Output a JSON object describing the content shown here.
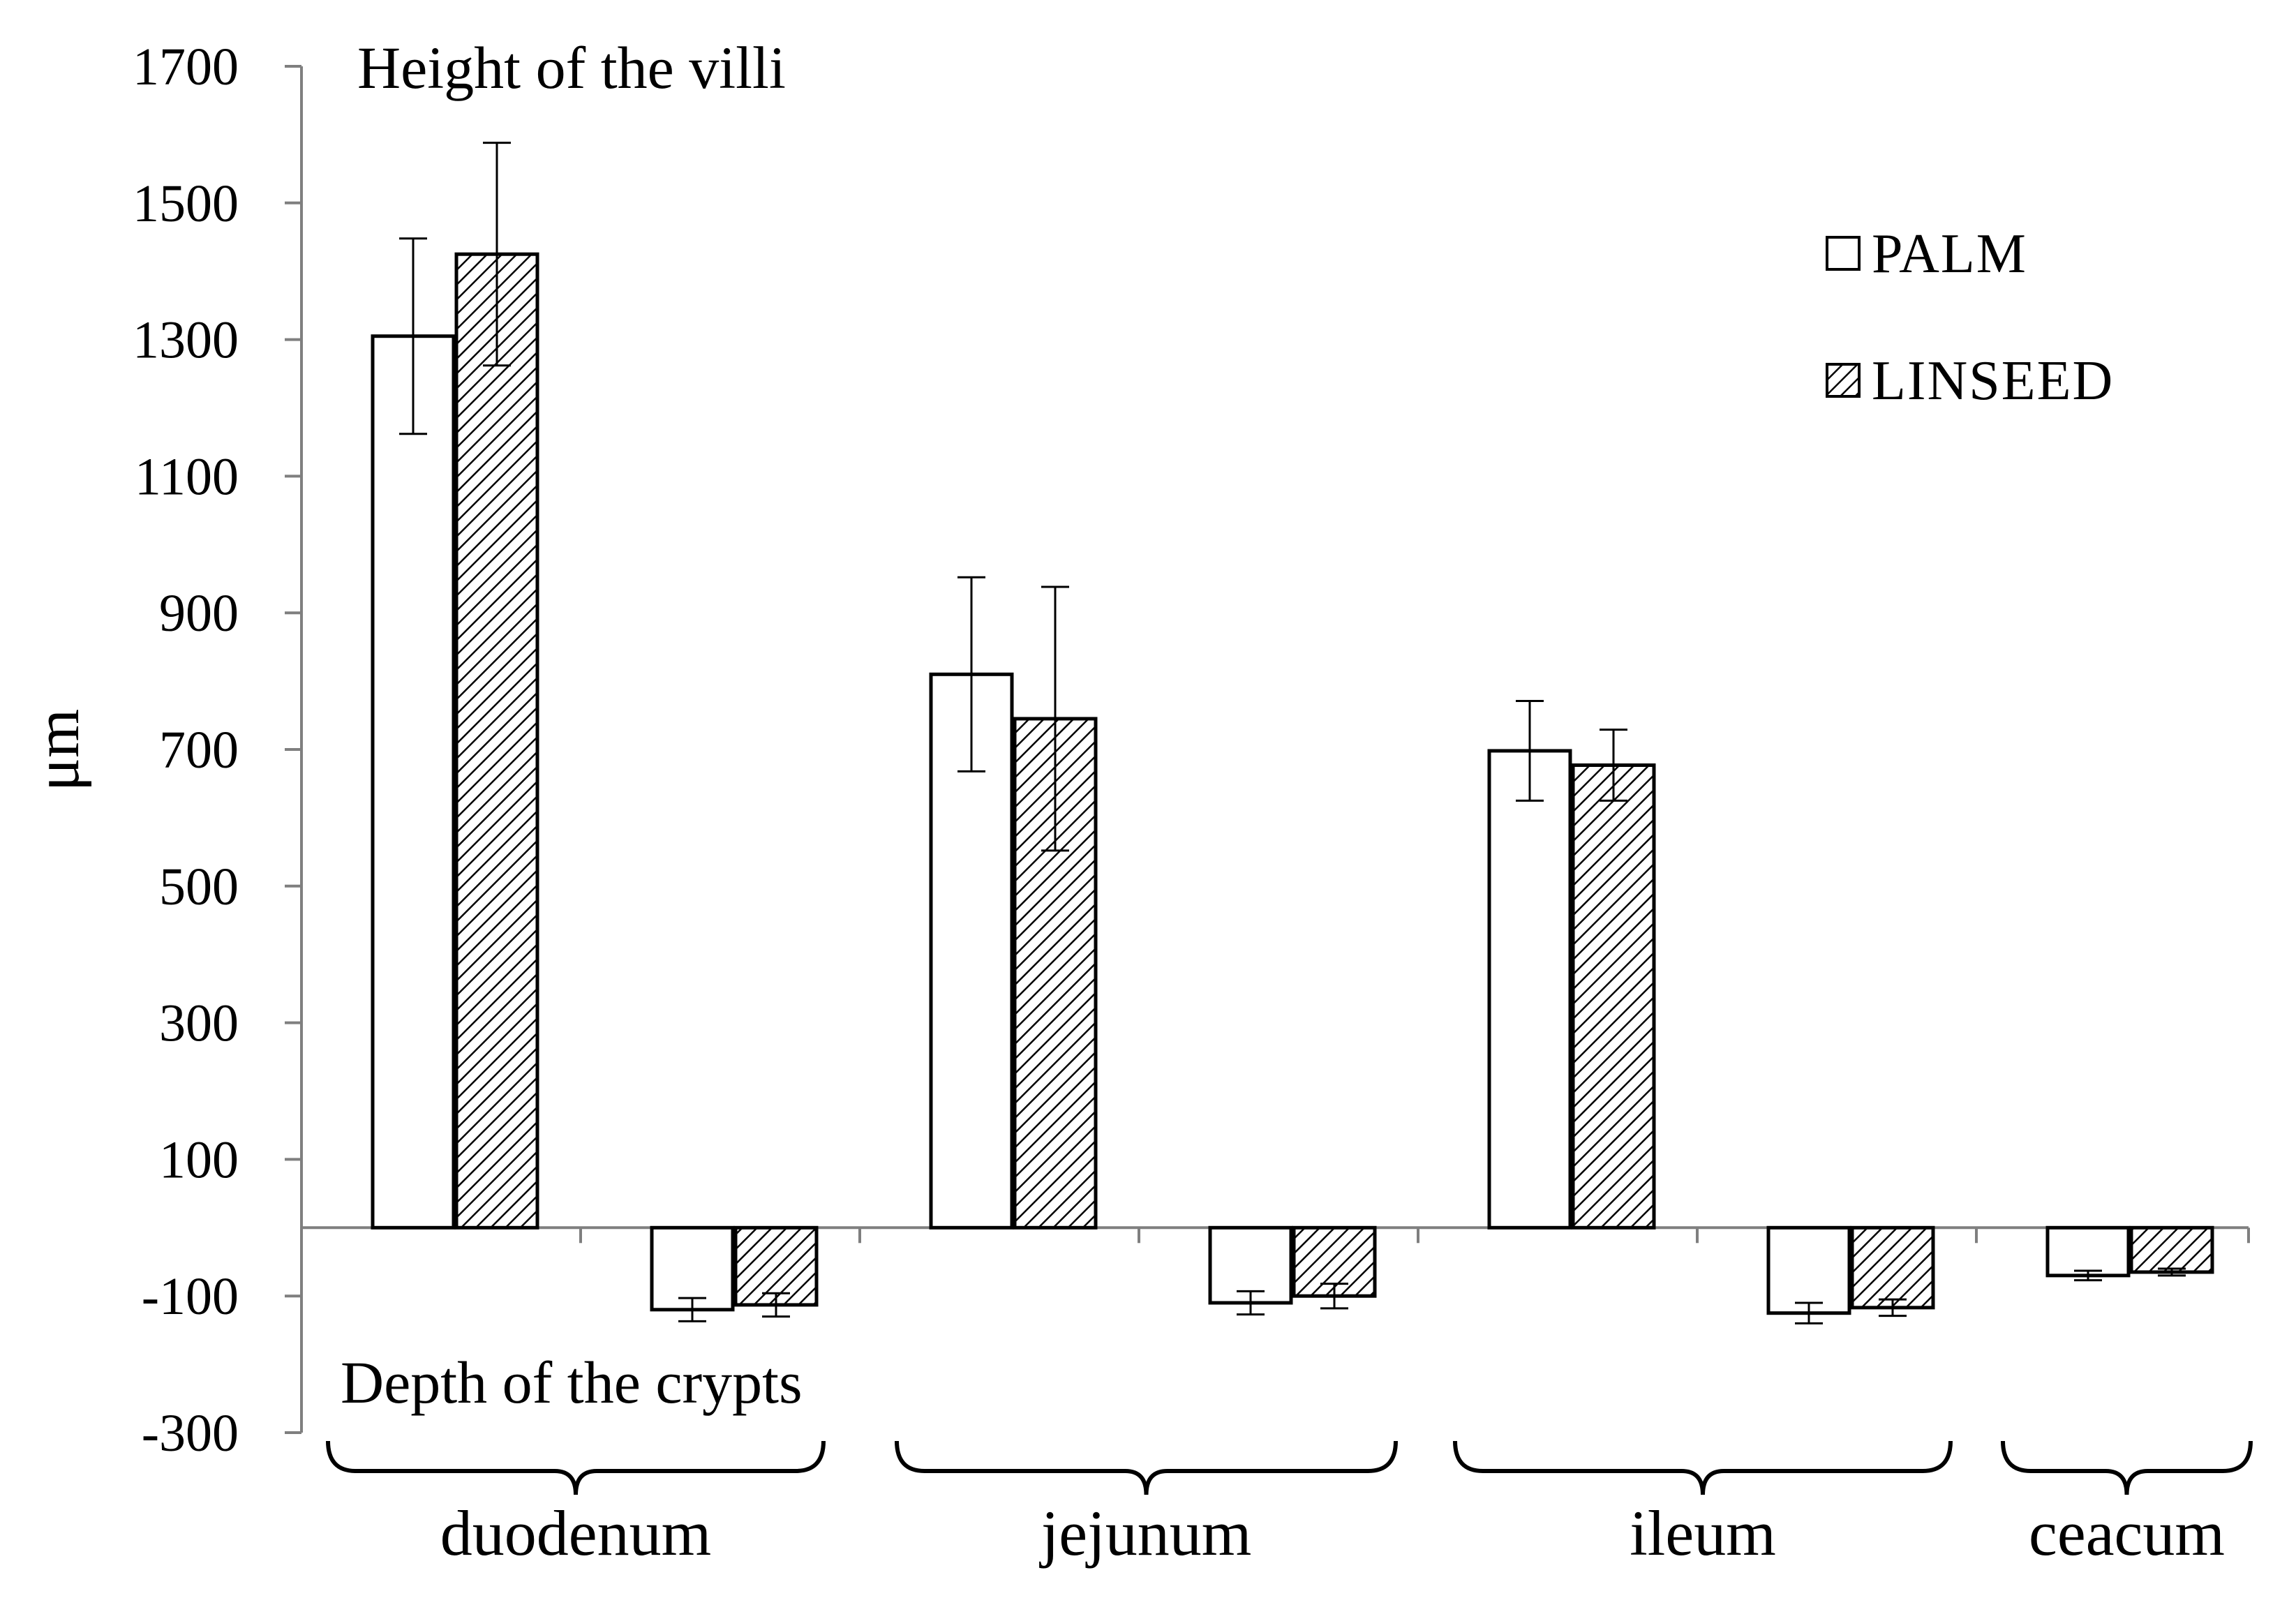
{
  "chart_data": {
    "type": "bar",
    "ylabel": "μm",
    "ylim": [
      -300,
      1700
    ],
    "yticks": [
      1700,
      1500,
      1300,
      1100,
      900,
      700,
      500,
      300,
      100,
      -100,
      -300
    ],
    "annotations": {
      "top": "Height of the villi",
      "bottom": "Depth of the crypts"
    },
    "groups": [
      {
        "name": "duodenum",
        "slots": [
          "villi",
          "crypts"
        ]
      },
      {
        "name": "jejunum",
        "slots": [
          "villi",
          "crypts"
        ]
      },
      {
        "name": "ileum",
        "slots": [
          "villi",
          "crypts"
        ]
      },
      {
        "name": "ceacum",
        "slots": [
          "crypts"
        ]
      }
    ],
    "series": [
      {
        "name": "PALM",
        "pattern": "none",
        "values": [
          {
            "group": "duodenum",
            "slot": "villi",
            "value": 1305,
            "error": 143
          },
          {
            "group": "duodenum",
            "slot": "crypts",
            "value": -120,
            "error": 17
          },
          {
            "group": "jejunum",
            "slot": "villi",
            "value": 810,
            "error": 142
          },
          {
            "group": "jejunum",
            "slot": "crypts",
            "value": -110,
            "error": 17
          },
          {
            "group": "ileum",
            "slot": "villi",
            "value": 698,
            "error": 73
          },
          {
            "group": "ileum",
            "slot": "crypts",
            "value": -125,
            "error": 15
          },
          {
            "group": "ceacum",
            "slot": "crypts",
            "value": -70,
            "error": 7
          }
        ]
      },
      {
        "name": "LINSEED",
        "pattern": "hatched",
        "values": [
          {
            "group": "duodenum",
            "slot": "villi",
            "value": 1425,
            "error": 163
          },
          {
            "group": "duodenum",
            "slot": "crypts",
            "value": -113,
            "error": 17
          },
          {
            "group": "jejunum",
            "slot": "villi",
            "value": 745,
            "error": 193
          },
          {
            "group": "jejunum",
            "slot": "crypts",
            "value": -100,
            "error": 18
          },
          {
            "group": "ileum",
            "slot": "villi",
            "value": 677,
            "error": 52
          },
          {
            "group": "ileum",
            "slot": "crypts",
            "value": -117,
            "error": 12
          },
          {
            "group": "ceacum",
            "slot": "crypts",
            "value": -65,
            "error": 5
          }
        ]
      }
    ],
    "legend": {
      "position": "top-right",
      "entries": [
        "PALM",
        "LINSEED"
      ]
    },
    "grid": false
  },
  "colors": {
    "axis": "#7f7f7f",
    "bar_stroke": "#000000",
    "palm_fill": "#ffffff",
    "hatch": "#000000",
    "text": "#000000"
  }
}
